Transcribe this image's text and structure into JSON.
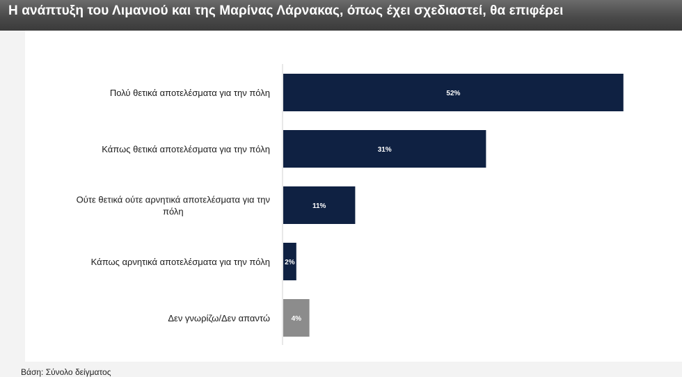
{
  "header": {
    "title": "Η ανάπτυξη του Λιμανιού και της Μαρίνας Λάρνακας, όπως έχει σχεδιαστεί, θα επιφέρει"
  },
  "footer": {
    "note": "Βάση: Σύνολο δείγματος"
  },
  "colors": {
    "bar_primary": "#0f2142",
    "bar_neutral": "#8c8c8c",
    "title_bar": "#4a4a4a"
  },
  "chart_data": {
    "type": "bar",
    "orientation": "horizontal",
    "title": "Η ανάπτυξη του Λιμανιού και της Μαρίνας Λάρνακας, όπως έχει σχεδιαστεί, θα επιφέρει",
    "categories": [
      "Πολύ θετικά αποτελέσματα για την πόλη",
      "Κάπως θετικά αποτελέσματα για την πόλη",
      "Ούτε θετικά ούτε αρνητικά αποτελέσματα για την πόλη",
      "Κάπως αρνητικά αποτελέσματα για την πόλη",
      "Δεν γνωρίζω/Δεν απαντώ"
    ],
    "category_label_lines": [
      [
        "Πολύ θετικά αποτελέσματα για την πόλη"
      ],
      [
        "Κάπως θετικά αποτελέσματα για την πόλη"
      ],
      [
        "Ούτε θετικά ούτε αρνητικά αποτελέσματα για την",
        "πόλη"
      ],
      [
        "Κάπως αρνητικά αποτελέσματα για την πόλη"
      ],
      [
        "Δεν γνωρίζω/Δεν απαντώ"
      ]
    ],
    "values": [
      52,
      31,
      11,
      2,
      4
    ],
    "value_labels": [
      "52%",
      "31%",
      "11%",
      "2%",
      "4%"
    ],
    "bar_colors": [
      "#0f2142",
      "#0f2142",
      "#0f2142",
      "#0f2142",
      "#8c8c8c"
    ],
    "xlabel": "",
    "ylabel": "",
    "xlim": [
      0,
      60
    ],
    "grid": false,
    "legend": "none"
  }
}
